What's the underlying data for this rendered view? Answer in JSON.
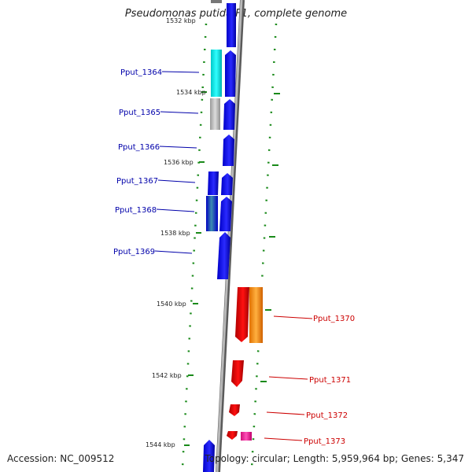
{
  "title": "Pseudomonas putida F1, complete genome",
  "accession": "Accession: NC_009512",
  "topology": "Topology: circular; Length: 5,959,964 bp; Genes: 5,347",
  "colors": {
    "backbone": "#8c8c8c",
    "forward_gene": "#1010e8",
    "reverse_gene": "#e00000",
    "tick": "#1a8a1a",
    "label_forward": "#0000aa",
    "label_reverse": "#cc0000",
    "cyan": "#00e0e0",
    "grey": "#b0b0b0",
    "orange": "#ff9000",
    "pink": "#f0209a",
    "teal": "#2a7fa0"
  },
  "kbp_labels": [
    "1532 kbp",
    "1534 kbp",
    "1536 kbp",
    "1538 kbp",
    "1540 kbp",
    "1542 kbp",
    "1544 kbp"
  ],
  "gene_labels": {
    "forward": [
      "Pput_1364",
      "Pput_1365",
      "Pput_1366",
      "Pput_1367",
      "Pput_1368",
      "Pput_1369"
    ],
    "reverse": [
      "Pput_1370",
      "Pput_1371",
      "Pput_1372",
      "Pput_1373"
    ]
  }
}
